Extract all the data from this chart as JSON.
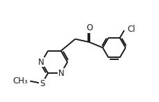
{
  "bg_color": "#ffffff",
  "line_color": "#1a1a1a",
  "line_width": 1.4,
  "font_size": 8.5,
  "figsize": [
    2.3,
    1.48
  ],
  "dpi": 100,
  "xlim": [
    0.0,
    10.0
  ],
  "ylim": [
    0.5,
    6.5
  ]
}
